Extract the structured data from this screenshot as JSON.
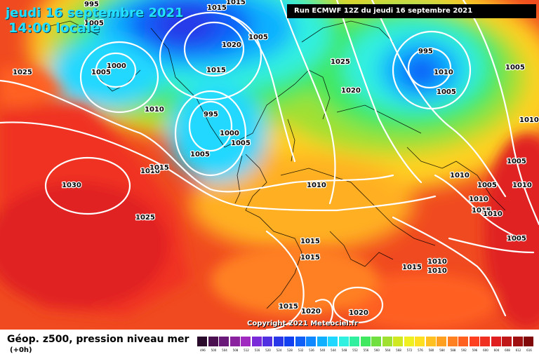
{
  "header": {
    "date": "jeudi 16 septembre 2021",
    "time": "14:00 locale",
    "run": "Run ECMWF 12Z du jeudi 16 septembre 2021"
  },
  "copyright": "Copyright 2021 Meteociel.fr",
  "legend": {
    "title": "Géop. z500, pression niveau mer",
    "subtitle": "(+0h)",
    "ticks": [
      "496",
      "500",
      "504",
      "508",
      "512",
      "516",
      "520",
      "524",
      "528",
      "532",
      "536",
      "540",
      "544",
      "548",
      "552",
      "556",
      "560",
      "564",
      "568",
      "572",
      "576",
      "580",
      "584",
      "588",
      "592",
      "596",
      "600",
      "604",
      "608",
      "612",
      "616"
    ],
    "colors": [
      "#2a0a2a",
      "#4a1050",
      "#6a1a78",
      "#8a22a0",
      "#a02ac0",
      "#7a2ad8",
      "#5030e0",
      "#2838e8",
      "#1040f0",
      "#1060f8",
      "#1088ff",
      "#10b0ff",
      "#20d8ff",
      "#30f0e0",
      "#30f0a0",
      "#40e860",
      "#70e040",
      "#a0e030",
      "#d0e820",
      "#f0f020",
      "#ffe020",
      "#ffc020",
      "#ffa020",
      "#ff8020",
      "#ff6020",
      "#ff4020",
      "#f03020",
      "#e02020",
      "#c01818",
      "#a01010",
      "#800808"
    ]
  },
  "isobar_labels": [
    "995",
    "1015",
    "1015",
    "1005",
    "1005",
    "1000",
    "1020",
    "1005",
    "1015",
    "1025",
    "1010",
    "995",
    "1000",
    "1005",
    "1010",
    "1005",
    "1020",
    "1015",
    "995",
    "1030",
    "1025",
    "1020",
    "1010",
    "1010",
    "1005",
    "1015",
    "1015",
    "1005",
    "1010",
    "1010",
    "1010",
    "1005",
    "1015",
    "1010",
    "1010",
    "1005",
    "1010",
    "1005",
    "1015",
    "1020",
    "1020",
    "1015",
    "1010",
    "1025"
  ]
}
